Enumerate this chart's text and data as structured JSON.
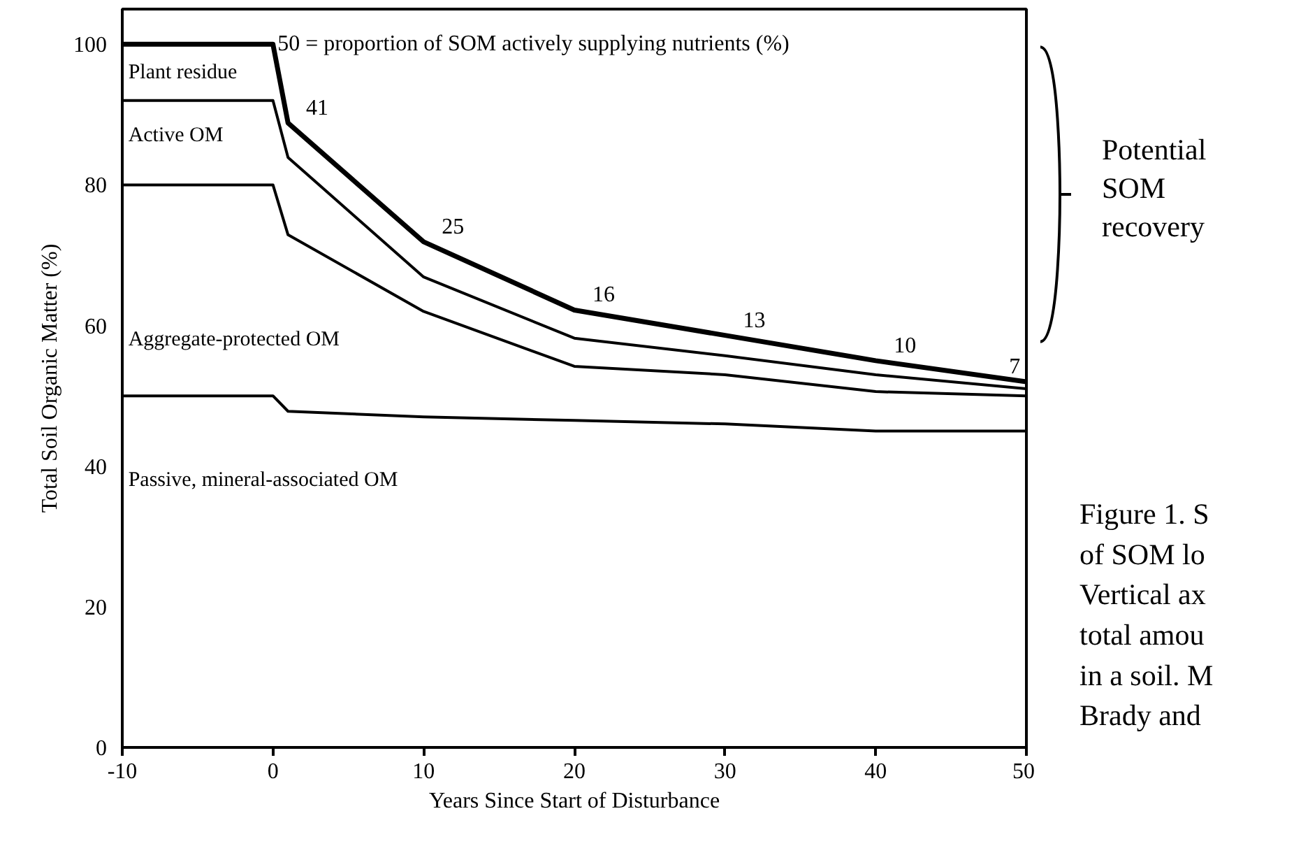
{
  "chart_data": {
    "type": "line",
    "xlabel": "Years Since Start of Disturbance",
    "ylabel": "Total Soil Organic Matter (%)",
    "x": [
      -10,
      0,
      1,
      10,
      20,
      30,
      40,
      50
    ],
    "xlim": [
      -10,
      50
    ],
    "ylim": [
      0,
      105
    ],
    "xticks": [
      -10,
      0,
      10,
      20,
      30,
      40,
      50
    ],
    "yticks": [
      0,
      20,
      40,
      60,
      80,
      100
    ],
    "grid": false,
    "legend": false,
    "marker": "none",
    "line_style": "solid",
    "series": [
      {
        "color": "#000000",
        "values": [
          100,
          100,
          88.8,
          71.9,
          62.2,
          58.6,
          55,
          52
        ]
      },
      {
        "color": "#000000",
        "values": [
          92,
          92,
          83.9,
          66.9,
          58.2,
          55.7,
          53,
          51
        ]
      },
      {
        "color": "#000000",
        "values": [
          80,
          80,
          72.9,
          62,
          54.2,
          53,
          50.6,
          50
        ]
      },
      {
        "color": "#000000",
        "values": [
          50,
          50,
          47.8,
          47,
          46.5,
          46,
          45,
          45
        ]
      }
    ],
    "annotations": [
      "50 = proportion of SOM actively supplying nutrients (%)",
      "Plant residue",
      "Active OM",
      "Aggregate-protected OM",
      "Passive, mineral-associated OM",
      {
        "text": "41",
        "x": 1,
        "y": 88.8
      },
      {
        "text": "25",
        "x": 10,
        "y": 71.9
      },
      {
        "text": "16",
        "x": 20,
        "y": 62.2
      },
      {
        "text": "13",
        "x": 30,
        "y": 58.6
      },
      {
        "text": "10",
        "x": 40,
        "y": 55
      },
      {
        "text": "7",
        "x": 50,
        "y": 52
      },
      "Potential\nSOM\nrecovery",
      "Figure 1. S\nof SOM lo\nVertical ax\ntotal amou\nin a soil. M\nBrady and"
    ]
  }
}
